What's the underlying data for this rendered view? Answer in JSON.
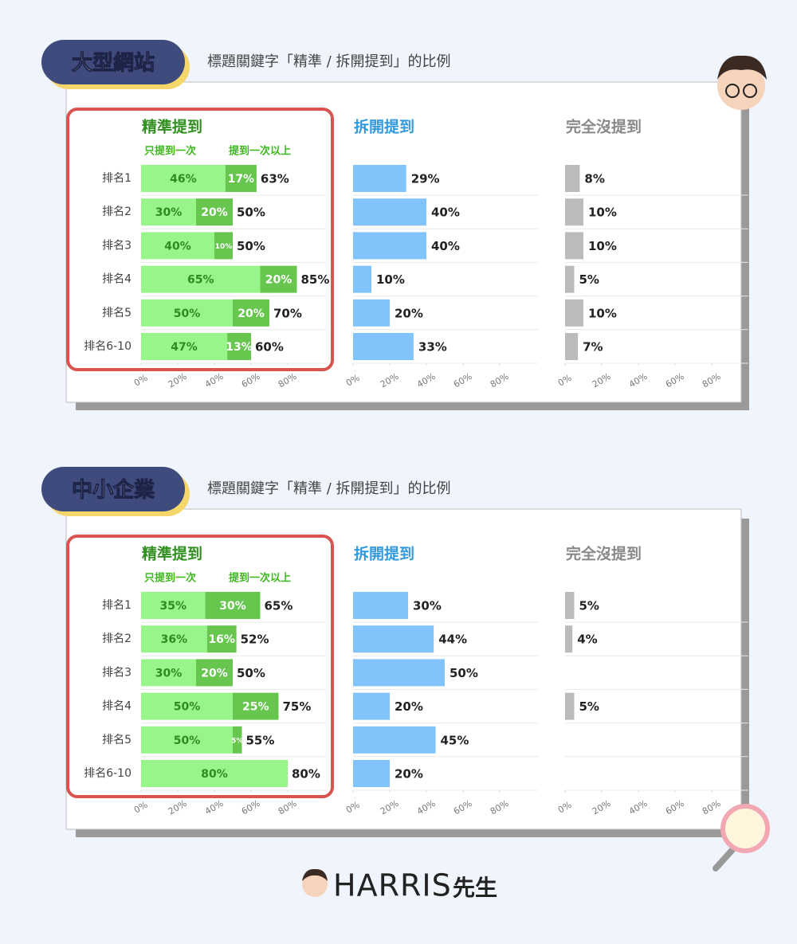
{
  "sections": [
    {
      "title": "大型網站",
      "subtitle": "標題關鍵字「精準 / 拆開提到」的比例"
    },
    {
      "title": "中小企業",
      "subtitle": "標題關鍵字「精準 / 拆開提到」的比例"
    }
  ],
  "brand": "HARRIS",
  "brand_suffix": "先生",
  "chart_data": [
    {
      "type": "stacked_bar",
      "title": "精準提到",
      "categories": [
        "排名1",
        "排名2",
        "排名3",
        "排名4",
        "排名5",
        "排名6-10"
      ],
      "series": [
        {
          "name": "只提到一次",
          "color": "#98f58a",
          "values": [
            46,
            30,
            40,
            65,
            50,
            47
          ],
          "value_labels": [
            "46%",
            "30%",
            "40%",
            "65%",
            "50%",
            "47%"
          ]
        },
        {
          "name": "提到一次以上",
          "color": "#66c64e",
          "values": [
            17,
            20,
            10,
            20,
            20,
            13
          ],
          "value_labels": [
            "17%",
            "20%",
            "10%",
            "20%",
            "20%",
            "13%"
          ]
        }
      ],
      "totals": [
        63,
        50,
        50,
        85,
        70,
        60
      ],
      "total_labels": [
        "63%",
        "50%",
        "50%",
        "85%",
        "70%",
        "60%"
      ],
      "xlim": [
        0,
        100
      ],
      "xticks": [
        {
          "value": 0,
          "label": "0%"
        },
        {
          "value": 20,
          "label": "20%"
        },
        {
          "value": 40,
          "label": "40%"
        },
        {
          "value": 60,
          "label": "60%"
        },
        {
          "value": 80,
          "label": "80%"
        }
      ]
    },
    {
      "type": "bar",
      "title": "拆開提到",
      "color": "#80c4fb",
      "values": [
        29,
        40,
        40,
        10,
        20,
        33
      ],
      "value_labels": [
        "29%",
        "40%",
        "40%",
        "10%",
        "20%",
        "33%"
      ],
      "xlim": [
        0,
        100
      ],
      "xticks": [
        {
          "value": 0,
          "label": "0%"
        },
        {
          "value": 20,
          "label": "20%"
        },
        {
          "value": 40,
          "label": "40%"
        },
        {
          "value": 60,
          "label": "60%"
        },
        {
          "value": 80,
          "label": "80%"
        }
      ]
    },
    {
      "type": "bar",
      "title": "完全沒提到",
      "color": "#bbbbbb",
      "values": [
        8,
        10,
        10,
        5,
        10,
        7
      ],
      "value_labels": [
        "8%",
        "10%",
        "10%",
        "5%",
        "10%",
        "7%"
      ],
      "xlim": [
        0,
        100
      ],
      "xticks": [
        {
          "value": 0,
          "label": "0%"
        },
        {
          "value": 20,
          "label": "20%"
        },
        {
          "value": 40,
          "label": "40%"
        },
        {
          "value": 60,
          "label": "60%"
        },
        {
          "value": 80,
          "label": "80%"
        }
      ]
    },
    {
      "type": "stacked_bar",
      "title": "精準提到",
      "categories": [
        "排名1",
        "排名2",
        "排名3",
        "排名4",
        "排名5",
        "排名6-10"
      ],
      "series": [
        {
          "name": "只提到一次",
          "color": "#98f58a",
          "values": [
            35,
            36,
            30,
            50,
            50,
            80
          ],
          "value_labels": [
            "35%",
            "36%",
            "30%",
            "50%",
            "50%",
            "80%"
          ]
        },
        {
          "name": "提到一次以上",
          "color": "#66c64e",
          "values": [
            30,
            16,
            20,
            25,
            5,
            null
          ],
          "value_labels": [
            "30%",
            "16%",
            "20%",
            "25%",
            "5%",
            null
          ]
        }
      ],
      "totals": [
        65,
        52,
        50,
        75,
        55,
        80
      ],
      "total_labels": [
        "65%",
        "52%",
        "50%",
        "75%",
        "55%",
        "80%"
      ],
      "xlim": [
        0,
        100
      ],
      "xticks": [
        {
          "value": 0,
          "label": "0%"
        },
        {
          "value": 20,
          "label": "20%"
        },
        {
          "value": 40,
          "label": "40%"
        },
        {
          "value": 60,
          "label": "60%"
        },
        {
          "value": 80,
          "label": "80%"
        }
      ]
    },
    {
      "type": "bar",
      "title": "拆開提到",
      "color": "#80c4fb",
      "values": [
        30,
        44,
        50,
        20,
        45,
        20
      ],
      "value_labels": [
        "30%",
        "44%",
        "50%",
        "20%",
        "45%",
        "20%"
      ],
      "xlim": [
        0,
        100
      ],
      "xticks": [
        {
          "value": 0,
          "label": "0%"
        },
        {
          "value": 20,
          "label": "20%"
        },
        {
          "value": 40,
          "label": "40%"
        },
        {
          "value": 60,
          "label": "60%"
        },
        {
          "value": 80,
          "label": "80%"
        }
      ]
    },
    {
      "type": "bar",
      "title": "完全沒提到",
      "color": "#bbbbbb",
      "values": [
        5,
        4,
        null,
        5,
        null,
        null
      ],
      "value_labels": [
        "5%",
        "4%",
        null,
        "5%",
        null,
        null
      ],
      "xlim": [
        0,
        100
      ],
      "xticks": [
        {
          "value": 0,
          "label": "0%"
        },
        {
          "value": 20,
          "label": "20%"
        },
        {
          "value": 40,
          "label": "40%"
        },
        {
          "value": 60,
          "label": "60%"
        },
        {
          "value": 80,
          "label": "80%"
        }
      ]
    }
  ]
}
